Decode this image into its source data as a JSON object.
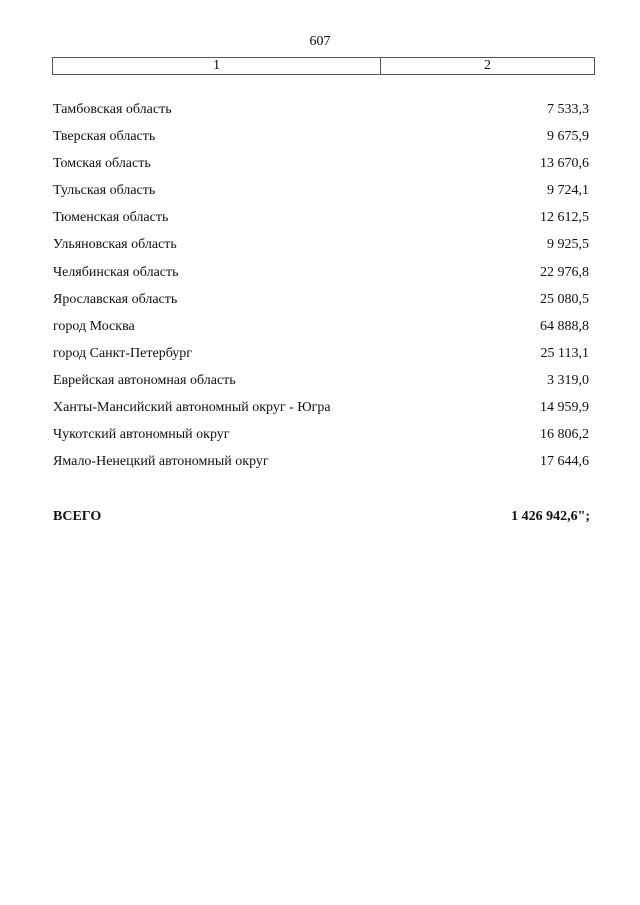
{
  "page_number": "607",
  "header": {
    "col1": "1",
    "col2": "2"
  },
  "rows": [
    {
      "name": "Тамбовская область",
      "value": "7 533,3"
    },
    {
      "name": "Тверская область",
      "value": "9 675,9"
    },
    {
      "name": "Томская область",
      "value": "13 670,6"
    },
    {
      "name": "Тульская область",
      "value": "9 724,1"
    },
    {
      "name": "Тюменская область",
      "value": "12 612,5"
    },
    {
      "name": "Ульяновская область",
      "value": "9 925,5"
    },
    {
      "name": "Челябинская область",
      "value": "22 976,8"
    },
    {
      "name": "Ярославская область",
      "value": "25 080,5"
    },
    {
      "name": "город Москва",
      "value": "64 888,8"
    },
    {
      "name": "город Санкт-Петербург",
      "value": "25 113,1"
    },
    {
      "name": "Еврейская автономная область",
      "value": "3 319,0"
    },
    {
      "name": "Ханты-Мансийский автономный округ - Югра",
      "value": "14 959,9"
    },
    {
      "name": "Чукотский автономный округ",
      "value": "16 806,2"
    },
    {
      "name": "Ямало-Ненецкий автономный округ",
      "value": "17 644,6"
    }
  ],
  "total": {
    "label": "ВСЕГО",
    "value": "1 426 942,6\";"
  }
}
